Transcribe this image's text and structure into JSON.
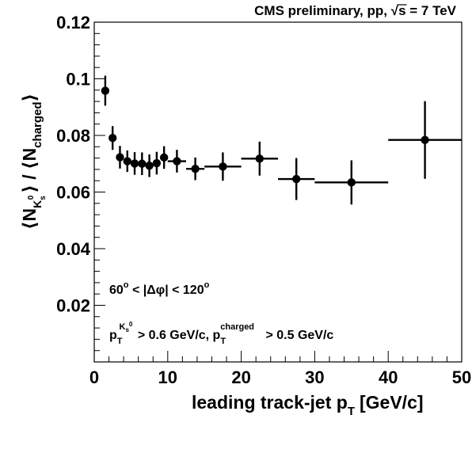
{
  "chart_data": {
    "type": "scatter",
    "title": "CMS preliminary, pp, √s = 7 TeV",
    "title_parts": {
      "prefix": "CMS preliminary, pp, ",
      "sqrt": "√",
      "s": "s",
      "suffix": " = 7 TeV"
    },
    "xlabel": "leading track-jet p",
    "xlabel_sub": "T",
    "xlabel_unit": "[GeV/c]",
    "ylabel_parts": [
      "⟨N",
      "K",
      "s",
      "0",
      "⟩ / ⟨N",
      "charged",
      "⟩"
    ],
    "xlim": [
      0,
      50
    ],
    "ylim": [
      0,
      0.12
    ],
    "xticks": [
      0,
      10,
      20,
      30,
      40,
      50
    ],
    "yticks": [
      0.02,
      0.04,
      0.06,
      0.08,
      0.1,
      0.12
    ],
    "ytick_labels": [
      "0.02",
      "0.04",
      "0.06",
      "0.08",
      "0.1",
      "0.12"
    ],
    "grid": false,
    "annotations": [
      {
        "id": "dphi",
        "parts": [
          "60",
          "o",
          " < |Δφ| < 120",
          "o"
        ]
      },
      {
        "id": "pt-cuts",
        "parts": [
          "p",
          "T",
          "K",
          "s",
          "0",
          " > 0.6 GeV/c, p",
          "T",
          "charged",
          " > 0.5 GeV/c"
        ]
      }
    ],
    "series": [
      {
        "points": [
          {
            "x": 1.5,
            "xerr": 0.5,
            "y": 0.0958,
            "yerr": 0.0053
          },
          {
            "x": 2.5,
            "xerr": 0.5,
            "y": 0.0791,
            "yerr": 0.0042
          },
          {
            "x": 3.5,
            "xerr": 0.5,
            "y": 0.0723,
            "yerr": 0.004
          },
          {
            "x": 4.5,
            "xerr": 0.5,
            "y": 0.0709,
            "yerr": 0.0038
          },
          {
            "x": 5.5,
            "xerr": 0.5,
            "y": 0.0701,
            "yerr": 0.004
          },
          {
            "x": 6.5,
            "xerr": 0.5,
            "y": 0.07,
            "yerr": 0.004
          },
          {
            "x": 7.5,
            "xerr": 0.5,
            "y": 0.0693,
            "yerr": 0.004
          },
          {
            "x": 8.5,
            "xerr": 0.5,
            "y": 0.0702,
            "yerr": 0.004
          },
          {
            "x": 9.5,
            "xerr": 0.5,
            "y": 0.0722,
            "yerr": 0.004
          },
          {
            "x": 11.25,
            "xerr": 1.25,
            "y": 0.0709,
            "yerr": 0.004
          },
          {
            "x": 13.75,
            "xerr": 1.25,
            "y": 0.0682,
            "yerr": 0.004
          },
          {
            "x": 17.5,
            "xerr": 2.5,
            "y": 0.069,
            "yerr": 0.005
          },
          {
            "x": 22.5,
            "xerr": 2.5,
            "y": 0.0718,
            "yerr": 0.006
          },
          {
            "x": 27.5,
            "xerr": 2.5,
            "y": 0.0646,
            "yerr": 0.0074
          },
          {
            "x": 35.0,
            "xerr": 5.0,
            "y": 0.0634,
            "yerr": 0.0078
          },
          {
            "x": 45.0,
            "xerr": 5.0,
            "y": 0.0784,
            "yerr": 0.0137
          }
        ]
      }
    ]
  }
}
